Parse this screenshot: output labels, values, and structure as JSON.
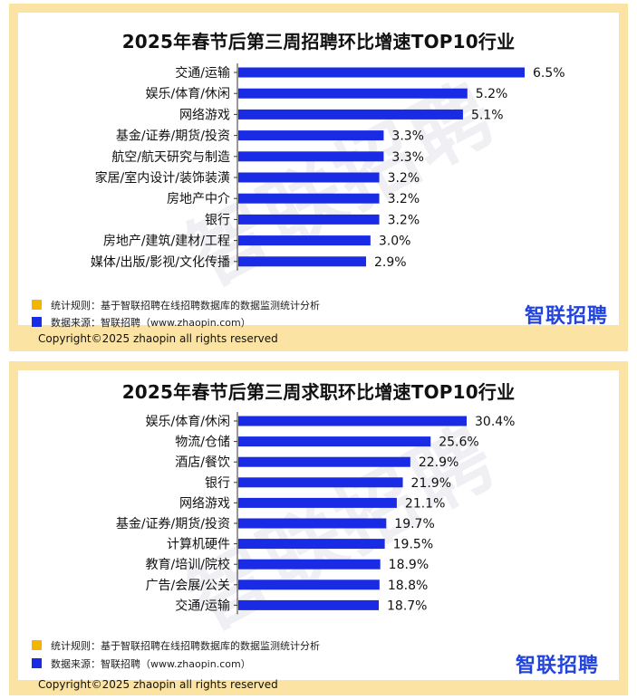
{
  "colors": {
    "bar": "#1a2be6",
    "frame": "#fbe3a4",
    "legend_rule": "#f5b400",
    "legend_source": "#1a2be6",
    "logo": "#2244dd"
  },
  "chart_data": [
    {
      "type": "bar",
      "orientation": "horizontal",
      "title": "2025年春节后第三周招聘环比增速TOP10行业",
      "categories": [
        "交通/运输",
        "娱乐/体育/休闲",
        "网络游戏",
        "基金/证券/期货/投资",
        "航空/航天研究与制造",
        "家居/室内设计/装饰装潢",
        "房地产中介",
        "银行",
        "房地产/建筑/建材/工程",
        "媒体/出版/影视/文化传播"
      ],
      "values": [
        6.5,
        5.2,
        5.1,
        3.3,
        3.3,
        3.2,
        3.2,
        3.2,
        3.0,
        2.9
      ],
      "value_labels": [
        "6.5%",
        "5.2%",
        "5.1%",
        "3.3%",
        "3.3%",
        "3.2%",
        "3.2%",
        "3.2%",
        "3.0%",
        "2.9%"
      ],
      "xlim": [
        0,
        6.5
      ],
      "grid": false,
      "legend_rule": "统计规则：基于智联招聘在线招聘数据库的数据监测统计分析",
      "legend_source": "数据来源：智联招聘（www.zhaopin.com）",
      "watermark": "智联招聘",
      "logo": "智联招聘",
      "copyright": "Copyright©2025 zhaopin all rights reserved"
    },
    {
      "type": "bar",
      "orientation": "horizontal",
      "title": "2025年春节后第三周求职环比增速TOP10行业",
      "categories": [
        "娱乐/体育/休闲",
        "物流/仓储",
        "酒店/餐饮",
        "银行",
        "网络游戏",
        "基金/证券/期货/投资",
        "计算机硬件",
        "教育/培训/院校",
        "广告/会展/公关",
        "交通/运输"
      ],
      "values": [
        30.4,
        25.6,
        22.9,
        21.9,
        21.1,
        19.7,
        19.5,
        18.9,
        18.8,
        18.7
      ],
      "value_labels": [
        "30.4%",
        "25.6%",
        "22.9%",
        "21.9%",
        "21.1%",
        "19.7%",
        "19.5%",
        "18.9%",
        "18.8%",
        "18.7%"
      ],
      "xlim": [
        0,
        30.4
      ],
      "grid": false,
      "legend_rule": "统计规则：基于智联招聘在线招聘数据库的数据监测统计分析",
      "legend_source": "数据来源：智联招聘（www.zhaopin.com）",
      "watermark": "智联招聘",
      "logo": "智联招聘",
      "copyright": "Copyright©2025 zhaopin all rights reserved"
    }
  ]
}
